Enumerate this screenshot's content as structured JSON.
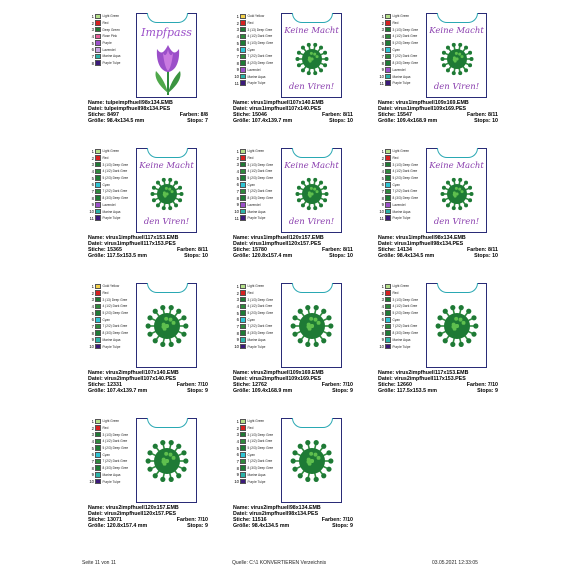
{
  "footer": {
    "page": "Seite 11 von 11",
    "source": "Quelle: C:\\1 KONVERTIEREN Verzeichnis",
    "date": "03.05.2021 12:33:05"
  },
  "labels": {
    "name": "Name:",
    "file": "Datei:",
    "stitches": "Stiche:",
    "size": "Größe:",
    "colors": "Farben:",
    "stops": "Stops:"
  },
  "texts": {
    "impfpass": "Impfpass",
    "keine": "Keine Macht",
    "viren": "den Viren!"
  },
  "colors": {
    "light_green": "#b4e08a",
    "red": "#d62020",
    "deep_green": "#1e7a35",
    "dark_green": "#2f8a3d",
    "rose": "#e8609b",
    "purple": "#9b4fc9",
    "lavender": "#c9a6e3",
    "marine_aqua": "#2bb3a8",
    "purple_tulip": "#3b1a7a",
    "gold": "#f3d14a",
    "cyan": "#2fc3d4"
  },
  "cards": [
    {
      "design": "tulip",
      "name": "tulpeimpfhuell98x134.EMB",
      "file": "tulpeimpfhuell98x134.PES",
      "stitches": "8497",
      "colors": "8/8",
      "size": "98.4x134.5 mm",
      "stops": "7",
      "legend": [
        {
          "n": "1",
          "c": "light_green",
          "l": "Light Green"
        },
        {
          "n": "2",
          "c": "red",
          "l": "Red"
        },
        {
          "n": "3",
          "c": "deep_green",
          "l": "Deep Green"
        },
        {
          "n": "4",
          "c": "rose",
          "l": "Rose Pink"
        },
        {
          "n": "5",
          "c": "purple",
          "l": "Purple"
        },
        {
          "n": "6",
          "c": "lavender",
          "l": "Lavendel"
        },
        {
          "n": "7",
          "c": "marine_aqua",
          "l": "Marine Aqua"
        },
        {
          "n": "8",
          "c": "purple_tulip",
          "l": "Purple Tulpe"
        }
      ]
    },
    {
      "design": "virus1",
      "name": "virus1impfhuell107x140.EMB",
      "file": "virus1impfhuell107x140.PES",
      "stitches": "15046",
      "colors": "8/11",
      "size": "107.4x139.7 mm",
      "stops": "10",
      "legend": [
        {
          "n": "1",
          "c": "gold",
          "l": "Gold Yellow"
        },
        {
          "n": "2",
          "c": "red",
          "l": "Red"
        },
        {
          "n": "3",
          "c": "deep_green",
          "l": "3 (13) Deep Gree"
        },
        {
          "n": "4",
          "c": "dark_green",
          "l": "4 (1/2) Dark Gree"
        },
        {
          "n": "5",
          "c": "deep_green",
          "l": "5 (1/3) Deep Gree"
        },
        {
          "n": "6",
          "c": "cyan",
          "l": "Cyan"
        },
        {
          "n": "7",
          "c": "dark_green",
          "l": "7 (2/2) Dark Gree"
        },
        {
          "n": "8",
          "c": "deep_green",
          "l": "8 (2/3) Deep Gree"
        },
        {
          "n": "9",
          "c": "purple",
          "l": "Lavendel"
        },
        {
          "n": "10",
          "c": "marine_aqua",
          "l": "Marine Aqua"
        },
        {
          "n": "11",
          "c": "purple_tulip",
          "l": "Purple Tulpe"
        }
      ]
    },
    {
      "design": "virus1",
      "name": "virus1impfhuell109x169.EMB",
      "file": "virus1impfhuell109x169.PES",
      "stitches": "15547",
      "colors": "8/11",
      "size": "109.4x168.9 mm",
      "stops": "10",
      "legend": [
        {
          "n": "1",
          "c": "light_green",
          "l": "Light Green"
        },
        {
          "n": "2",
          "c": "red",
          "l": "Red"
        },
        {
          "n": "3",
          "c": "deep_green",
          "l": "3 (1/3) Deep Gree"
        },
        {
          "n": "4",
          "c": "dark_green",
          "l": "4 (1/2) Dark Gree"
        },
        {
          "n": "5",
          "c": "deep_green",
          "l": "5 (2/3) Deep Gree"
        },
        {
          "n": "6",
          "c": "cyan",
          "l": "Cyan"
        },
        {
          "n": "7",
          "c": "dark_green",
          "l": "7 (2/2) Dark Gree"
        },
        {
          "n": "8",
          "c": "deep_green",
          "l": "8 (3/3) Deep Gree"
        },
        {
          "n": "9",
          "c": "purple",
          "l": "Lavendel"
        },
        {
          "n": "10",
          "c": "marine_aqua",
          "l": "Marine Aqua"
        },
        {
          "n": "11",
          "c": "purple_tulip",
          "l": "Purple Tulpe"
        }
      ]
    },
    {
      "design": "virus1",
      "name": "virus1impfhuell117x153.EMB",
      "file": "virus1impfhuell117x153.PES",
      "stitches": "15365",
      "colors": "8/11",
      "size": "117.5x153.5 mm",
      "stops": "10",
      "legend": [
        {
          "n": "1",
          "c": "light_green",
          "l": "Light Green"
        },
        {
          "n": "2",
          "c": "red",
          "l": "Red"
        },
        {
          "n": "3",
          "c": "deep_green",
          "l": "3 (1/3) Deep Gree"
        },
        {
          "n": "4",
          "c": "dark_green",
          "l": "4 (1/2) Dark Gree"
        },
        {
          "n": "5",
          "c": "deep_green",
          "l": "5 (2/3) Deep Gree"
        },
        {
          "n": "6",
          "c": "cyan",
          "l": "Cyan"
        },
        {
          "n": "7",
          "c": "dark_green",
          "l": "7 (2/2) Dark Gree"
        },
        {
          "n": "8",
          "c": "deep_green",
          "l": "8 (3/3) Deep Gree"
        },
        {
          "n": "9",
          "c": "purple",
          "l": "Lavendel"
        },
        {
          "n": "10",
          "c": "marine_aqua",
          "l": "Marine Aqua"
        },
        {
          "n": "11",
          "c": "purple_tulip",
          "l": "Purple Tulpe"
        }
      ]
    },
    {
      "design": "virus1",
      "name": "virus1impfhuell120x157.EMB",
      "file": "virus1impfhuell120x157.PES",
      "stitches": "15780",
      "colors": "8/11",
      "size": "120.8x157.4 mm",
      "stops": "10",
      "legend": [
        {
          "n": "1",
          "c": "light_green",
          "l": "Light Green"
        },
        {
          "n": "2",
          "c": "red",
          "l": "Red"
        },
        {
          "n": "3",
          "c": "deep_green",
          "l": "3 (1/3) Deep Gree"
        },
        {
          "n": "4",
          "c": "dark_green",
          "l": "4 (1/2) Dark Gree"
        },
        {
          "n": "5",
          "c": "deep_green",
          "l": "5 (2/3) Deep Gree"
        },
        {
          "n": "6",
          "c": "cyan",
          "l": "Cyan"
        },
        {
          "n": "7",
          "c": "dark_green",
          "l": "7 (2/2) Dark Gree"
        },
        {
          "n": "8",
          "c": "deep_green",
          "l": "8 (3/3) Deep Gree"
        },
        {
          "n": "9",
          "c": "purple",
          "l": "Lavendel"
        },
        {
          "n": "10",
          "c": "marine_aqua",
          "l": "Marine Aqua"
        },
        {
          "n": "11",
          "c": "purple_tulip",
          "l": "Purple Tulpe"
        }
      ]
    },
    {
      "design": "virus1",
      "name": "virus1impfhuell98x134.EMB",
      "file": "virus1impfhuell98x134.PES",
      "stitches": "14134",
      "colors": "8/11",
      "size": "98.4x134.5 mm",
      "stops": "10",
      "legend": [
        {
          "n": "1",
          "c": "light_green",
          "l": "Light Green"
        },
        {
          "n": "2",
          "c": "red",
          "l": "Red"
        },
        {
          "n": "3",
          "c": "deep_green",
          "l": "3 (1/3) Deep Gree"
        },
        {
          "n": "4",
          "c": "dark_green",
          "l": "4 (1/2) Dark Gree"
        },
        {
          "n": "5",
          "c": "deep_green",
          "l": "5 (2/3) Deep Gree"
        },
        {
          "n": "6",
          "c": "cyan",
          "l": "Cyan"
        },
        {
          "n": "7",
          "c": "dark_green",
          "l": "7 (2/2) Dark Gree"
        },
        {
          "n": "8",
          "c": "deep_green",
          "l": "8 (3/3) Deep Gree"
        },
        {
          "n": "9",
          "c": "purple",
          "l": "Lavendel"
        },
        {
          "n": "10",
          "c": "marine_aqua",
          "l": "Marine Aqua"
        },
        {
          "n": "11",
          "c": "purple_tulip",
          "l": "Purple Tulpe"
        }
      ]
    },
    {
      "design": "virus2",
      "name": "virus2impfhuell107x140.EMB",
      "file": "virus2impfhuell107x140.PES",
      "stitches": "12331",
      "colors": "7/10",
      "size": "107.4x139.7 mm",
      "stops": "9",
      "legend": [
        {
          "n": "1",
          "c": "gold",
          "l": "Gold Yellow"
        },
        {
          "n": "2",
          "c": "red",
          "l": "Red"
        },
        {
          "n": "3",
          "c": "deep_green",
          "l": "3 (13) Deep Gree"
        },
        {
          "n": "4",
          "c": "dark_green",
          "l": "4 (1/2) Dark Gree"
        },
        {
          "n": "5",
          "c": "deep_green",
          "l": "5 (2/3) Deep Gree"
        },
        {
          "n": "6",
          "c": "cyan",
          "l": "Cyan"
        },
        {
          "n": "7",
          "c": "dark_green",
          "l": "7 (2/2) Dark Gree"
        },
        {
          "n": "8",
          "c": "deep_green",
          "l": "8 (3/3) Deep Gree"
        },
        {
          "n": "9",
          "c": "marine_aqua",
          "l": "Marine Aqua"
        },
        {
          "n": "10",
          "c": "purple_tulip",
          "l": "Purple Tulpe"
        }
      ]
    },
    {
      "design": "virus2",
      "name": "virus2impfhuell109x169.EMB",
      "file": "virus2impfhuell109x169.PES",
      "stitches": "12762",
      "colors": "7/10",
      "size": "109.4x168.9 mm",
      "stops": "9",
      "legend": [
        {
          "n": "1",
          "c": "light_green",
          "l": "Light Green"
        },
        {
          "n": "2",
          "c": "red",
          "l": "Red"
        },
        {
          "n": "3",
          "c": "deep_green",
          "l": "3 (1/3) Deep Gree"
        },
        {
          "n": "4",
          "c": "dark_green",
          "l": "4 (1/2) Dark Gree"
        },
        {
          "n": "5",
          "c": "deep_green",
          "l": "5 (2/3) Deep Gree"
        },
        {
          "n": "6",
          "c": "cyan",
          "l": "Cyan"
        },
        {
          "n": "7",
          "c": "dark_green",
          "l": "7 (2/2) Dark Gree"
        },
        {
          "n": "8",
          "c": "deep_green",
          "l": "8 (3/3) Deep Gree"
        },
        {
          "n": "9",
          "c": "marine_aqua",
          "l": "Marine Aqua"
        },
        {
          "n": "10",
          "c": "purple_tulip",
          "l": "Purple Tulpe"
        }
      ]
    },
    {
      "design": "virus2",
      "name": "virus2impfhuell117x153.EMB",
      "file": "virus2impfhuell117x153.PES",
      "stitches": "12660",
      "colors": "7/10",
      "size": "117.5x153.5 mm",
      "stops": "9",
      "legend": [
        {
          "n": "1",
          "c": "light_green",
          "l": "Light Green"
        },
        {
          "n": "2",
          "c": "red",
          "l": "Red"
        },
        {
          "n": "3",
          "c": "deep_green",
          "l": "3 (1/3) Deep Gree"
        },
        {
          "n": "4",
          "c": "dark_green",
          "l": "4 (1/2) Dark Gree"
        },
        {
          "n": "5",
          "c": "deep_green",
          "l": "5 (2/3) Deep Gree"
        },
        {
          "n": "6",
          "c": "cyan",
          "l": "Cyan"
        },
        {
          "n": "7",
          "c": "dark_green",
          "l": "7 (2/2) Dark Gree"
        },
        {
          "n": "8",
          "c": "deep_green",
          "l": "8 (3/3) Deep Gree"
        },
        {
          "n": "9",
          "c": "marine_aqua",
          "l": "Marine Aqua"
        },
        {
          "n": "10",
          "c": "purple_tulip",
          "l": "Purple Tulpe"
        }
      ]
    },
    {
      "design": "virus2",
      "name": "virus2impfhuell120x157.EMB",
      "file": "virus2impfhuell120x157.PES",
      "stitches": "13071",
      "colors": "7/10",
      "size": "120.8x157.4 mm",
      "stops": "9",
      "legend": [
        {
          "n": "1",
          "c": "light_green",
          "l": "Light Green"
        },
        {
          "n": "2",
          "c": "red",
          "l": "Red"
        },
        {
          "n": "3",
          "c": "deep_green",
          "l": "3 (1/3) Deep Gree"
        },
        {
          "n": "4",
          "c": "dark_green",
          "l": "4 (1/2) Dark Gree"
        },
        {
          "n": "5",
          "c": "deep_green",
          "l": "5 (2/3) Deep Gree"
        },
        {
          "n": "6",
          "c": "cyan",
          "l": "Cyan"
        },
        {
          "n": "7",
          "c": "dark_green",
          "l": "7 (2/2) Dark Gree"
        },
        {
          "n": "8",
          "c": "deep_green",
          "l": "8 (3/3) Deep Gree"
        },
        {
          "n": "9",
          "c": "marine_aqua",
          "l": "Marine Aqua"
        },
        {
          "n": "10",
          "c": "purple_tulip",
          "l": "Purple Tulpe"
        }
      ]
    },
    {
      "design": "virus2",
      "name": "virus2impfhuell98x134.EMB",
      "file": "virus2impfhuell98x134.PES",
      "stitches": "11516",
      "colors": "7/10",
      "size": "98.4x134.5 mm",
      "stops": "9",
      "legend": [
        {
          "n": "1",
          "c": "light_green",
          "l": "Light Green"
        },
        {
          "n": "2",
          "c": "red",
          "l": "Red"
        },
        {
          "n": "3",
          "c": "deep_green",
          "l": "3 (1/3) Deep Gree"
        },
        {
          "n": "4",
          "c": "dark_green",
          "l": "4 (1/2) Dark Gree"
        },
        {
          "n": "5",
          "c": "deep_green",
          "l": "5 (2/3) Deep Gree"
        },
        {
          "n": "6",
          "c": "cyan",
          "l": "Cyan"
        },
        {
          "n": "7",
          "c": "dark_green",
          "l": "7 (2/2) Dark Gree"
        },
        {
          "n": "8",
          "c": "deep_green",
          "l": "8 (3/3) Deep Gree"
        },
        {
          "n": "9",
          "c": "marine_aqua",
          "l": "Marine Aqua"
        },
        {
          "n": "10",
          "c": "purple_tulip",
          "l": "Purple Tulpe"
        }
      ]
    }
  ]
}
